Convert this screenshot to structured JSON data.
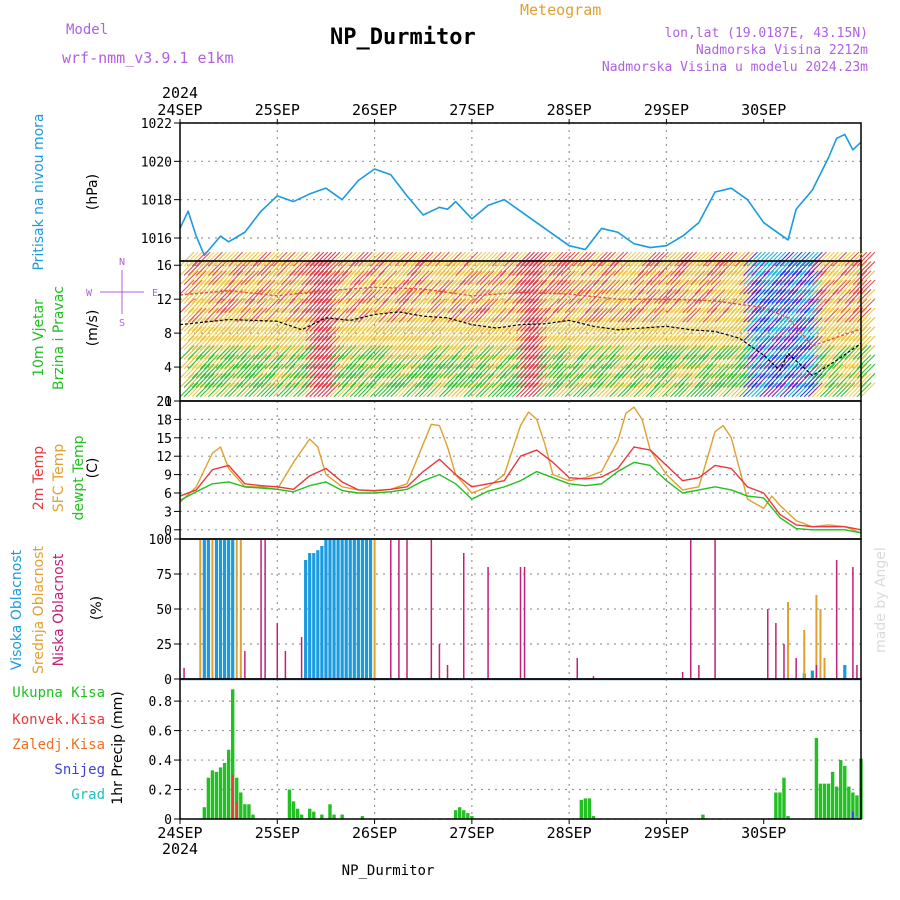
{
  "header": {
    "model_label": "Model",
    "model_name": "wrf-nmm_v3.9.1 e1km",
    "station": "NP_Durmitor",
    "product": "Meteogram",
    "lonlat": "lon,lat (19.0187E, 43.15N)",
    "elevation": "Nadmorska Visina 2212m",
    "model_elevation": "Nadmorska Visina u modelu 2024.23m",
    "year": "2024",
    "footer": "NP_Durmitor",
    "signature": "made by Angel"
  },
  "time_axis": {
    "labels": [
      "24SEP",
      "25SEP",
      "26SEP",
      "27SEP",
      "28SEP",
      "29SEP",
      "30SEP"
    ]
  },
  "colors": {
    "pressure": "#1a9be0",
    "t2m": "#e83a3a",
    "tsfc": "#e0a030",
    "dewpoint": "#22c022",
    "high_cloud": "#1a9be0",
    "mid_cloud": "#e0a030",
    "low_cloud": "#c0207a",
    "precip_total": "#22c022",
    "precip_conv": "#e83a3a",
    "precip_frz": "#f07020",
    "snow": "#4040e0",
    "hail": "#20c0c0",
    "wind_label": "#22c022",
    "wind_rose": "#b060e0",
    "header_purple": "#b060e0",
    "header_orange": "#e0a030"
  },
  "chart_data": [
    {
      "type": "line",
      "name": "pressure",
      "ylabel_colored": "Pritisak na nivou mora",
      "unit": "(hPa)",
      "ylim": [
        1014.8,
        1022
      ],
      "yticks": [
        1016,
        1018,
        1020,
        1022
      ],
      "grid": true,
      "x_hours": [
        0,
        2,
        4,
        6,
        8,
        10,
        12,
        16,
        20,
        24,
        28,
        32,
        36,
        40,
        44,
        48,
        52,
        56,
        60,
        64,
        66,
        68,
        72,
        76,
        80,
        84,
        88,
        92,
        96,
        100,
        104,
        108,
        112,
        116,
        120,
        124,
        128,
        132,
        136,
        140,
        144,
        146,
        148,
        150,
        152,
        156,
        160,
        162,
        164,
        166,
        168
      ],
      "values": [
        1016.5,
        1017.4,
        1016.1,
        1015.1,
        1015.6,
        1016.1,
        1015.8,
        1016.3,
        1017.4,
        1018.2,
        1017.9,
        1018.3,
        1018.6,
        1018.0,
        1019.0,
        1019.6,
        1019.3,
        1018.2,
        1017.2,
        1017.6,
        1017.5,
        1017.9,
        1017.0,
        1017.7,
        1018.0,
        1017.4,
        1016.8,
        1016.2,
        1015.6,
        1015.4,
        1016.5,
        1016.3,
        1015.7,
        1015.5,
        1015.6,
        1016.1,
        1016.8,
        1018.4,
        1018.6,
        1018.0,
        1016.8,
        1016.5,
        1016.2,
        1015.9,
        1017.5,
        1018.5,
        1020.2,
        1021.2,
        1021.4,
        1020.6,
        1021.0
      ]
    },
    {
      "type": "line",
      "name": "wind",
      "ylabel_colored": "10m Vjetar Brzina i Pravac",
      "unit": "(m/s)",
      "rose_labels": [
        "N",
        "W",
        "E",
        "S"
      ],
      "ylim": [
        0,
        16.5
      ],
      "yticks": [
        0,
        4,
        8,
        12,
        16
      ],
      "grid": true,
      "series": [
        {
          "name": "speed",
          "x_hours": [
            0,
            12,
            24,
            30,
            36,
            42,
            48,
            54,
            60,
            66,
            72,
            78,
            84,
            90,
            96,
            102,
            108,
            114,
            120,
            126,
            132,
            138,
            144,
            148,
            150,
            156,
            162,
            168
          ],
          "values": [
            9.0,
            9.6,
            9.4,
            8.4,
            9.8,
            9.5,
            10.2,
            10.5,
            10.0,
            9.8,
            9.0,
            8.6,
            9.0,
            9.1,
            9.5,
            8.8,
            8.4,
            8.6,
            8.8,
            8.4,
            8.2,
            7.4,
            5.4,
            3.6,
            5.6,
            3.0,
            4.8,
            6.8
          ]
        },
        {
          "name": "gust",
          "x_hours": [
            0,
            12,
            24,
            36,
            48,
            60,
            72,
            84,
            96,
            108,
            120,
            132,
            144,
            150,
            156,
            168
          ],
          "values": [
            12.5,
            13.0,
            12.4,
            13.0,
            13.4,
            13.2,
            12.4,
            12.8,
            12.6,
            12.0,
            12.0,
            11.8,
            11.0,
            9.8,
            6.5,
            8.5
          ]
        }
      ]
    },
    {
      "type": "line",
      "name": "temperature",
      "ylabel_colored": [
        "2m Temp",
        "SFC Temp",
        "dewpt Temp"
      ],
      "unit": "(C)",
      "ylim": [
        -1.5,
        21
      ],
      "yticks": [
        0,
        3,
        6,
        9,
        12,
        15,
        18,
        21
      ],
      "grid": true,
      "series": [
        {
          "name": "2m Temp",
          "x_hours": [
            0,
            4,
            8,
            12,
            16,
            20,
            24,
            28,
            32,
            36,
            40,
            44,
            48,
            52,
            56,
            60,
            64,
            68,
            72,
            76,
            80,
            84,
            88,
            92,
            96,
            100,
            104,
            108,
            112,
            116,
            120,
            124,
            128,
            132,
            136,
            140,
            144,
            148,
            152,
            156,
            160,
            164,
            168
          ],
          "values": [
            5.5,
            6.5,
            9.8,
            10.5,
            7.5,
            7.2,
            7.0,
            6.6,
            8.8,
            10.0,
            7.8,
            6.5,
            6.4,
            6.6,
            7.0,
            9.5,
            11.5,
            9.0,
            7.0,
            7.5,
            8.0,
            12.0,
            13.0,
            11.0,
            8.5,
            8.3,
            8.6,
            10.0,
            13.5,
            13.0,
            10.5,
            8.0,
            8.5,
            10.5,
            10.0,
            7.0,
            6.0,
            2.5,
            0.8,
            0.5,
            0.5,
            0.5,
            0.0
          ]
        },
        {
          "name": "SFC Temp",
          "x_hours": [
            0,
            4,
            8,
            10,
            12,
            16,
            20,
            24,
            28,
            32,
            34,
            36,
            40,
            44,
            48,
            52,
            56,
            60,
            62,
            64,
            66,
            68,
            72,
            76,
            80,
            84,
            86,
            88,
            90,
            92,
            96,
            100,
            104,
            108,
            110,
            112,
            114,
            116,
            120,
            124,
            128,
            132,
            134,
            136,
            140,
            144,
            146,
            148,
            152,
            156,
            160,
            164,
            168
          ],
          "values": [
            4.5,
            7.0,
            12.5,
            13.5,
            10.0,
            7.0,
            7.0,
            6.6,
            11.0,
            14.8,
            13.5,
            9.0,
            7.0,
            6.5,
            6.3,
            6.6,
            7.5,
            14.0,
            17.2,
            17.0,
            13.5,
            9.0,
            6.0,
            7.0,
            9.0,
            17.0,
            19.2,
            18.0,
            14.0,
            9.0,
            8.0,
            8.5,
            9.5,
            14.5,
            19.0,
            20.0,
            18.0,
            13.0,
            9.0,
            6.5,
            7.0,
            16.0,
            17.0,
            15.0,
            5.0,
            3.5,
            5.5,
            4.0,
            1.5,
            0.5,
            0.8,
            0.5,
            -0.5
          ]
        },
        {
          "name": "dewpt Temp",
          "x_hours": [
            0,
            4,
            8,
            12,
            16,
            20,
            24,
            28,
            32,
            36,
            40,
            44,
            48,
            52,
            56,
            60,
            64,
            68,
            72,
            76,
            80,
            84,
            88,
            92,
            96,
            100,
            104,
            108,
            112,
            116,
            120,
            124,
            128,
            132,
            136,
            140,
            144,
            148,
            152,
            156,
            160,
            164,
            168
          ],
          "values": [
            4.8,
            6.2,
            7.5,
            7.8,
            7.0,
            6.8,
            6.6,
            6.2,
            7.2,
            7.8,
            6.4,
            6.0,
            6.0,
            6.2,
            6.6,
            8.0,
            9.0,
            7.5,
            5.0,
            6.3,
            7.0,
            8.0,
            9.5,
            8.5,
            7.5,
            7.2,
            7.5,
            9.5,
            11.0,
            10.5,
            8.0,
            6.0,
            6.5,
            7.0,
            6.5,
            5.5,
            5.2,
            2.0,
            0.2,
            0.0,
            0.0,
            0.0,
            -0.5
          ]
        }
      ]
    },
    {
      "type": "bar",
      "name": "clouds",
      "ylabel_colored": [
        "Visoka Oblacnost",
        "Srednja Oblacnost",
        "Niska Oblacnost"
      ],
      "unit": "(%)",
      "ylim": [
        0,
        100
      ],
      "yticks": [
        0,
        25,
        50,
        75,
        100
      ],
      "grid": true,
      "series": [
        {
          "name": "Visoka Oblacnost",
          "bars": [
            [
              6,
              100
            ],
            [
              7,
              100
            ],
            [
              9,
              100
            ],
            [
              10,
              100
            ],
            [
              11,
              100
            ],
            [
              12,
              100
            ],
            [
              13,
              100
            ],
            [
              31,
              85
            ],
            [
              32,
              90
            ],
            [
              33,
              90
            ],
            [
              34,
              92
            ],
            [
              35,
              95
            ],
            [
              36,
              100
            ],
            [
              37,
              100
            ],
            [
              38,
              100
            ],
            [
              39,
              100
            ],
            [
              40,
              100
            ],
            [
              41,
              100
            ],
            [
              42,
              100
            ],
            [
              43,
              100
            ],
            [
              44,
              100
            ],
            [
              45,
              100
            ],
            [
              46,
              100
            ],
            [
              47,
              100
            ],
            [
              154,
              4
            ],
            [
              156,
              6
            ],
            [
              164,
              10
            ]
          ]
        },
        {
          "name": "Srednja Oblacnost",
          "bars": [
            [
              5,
              100
            ],
            [
              8,
              100
            ],
            [
              14,
              100
            ],
            [
              15,
              100
            ],
            [
              48,
              100
            ],
            [
              150,
              55
            ],
            [
              154,
              35
            ],
            [
              157,
              60
            ],
            [
              158,
              50
            ],
            [
              159,
              15
            ]
          ]
        },
        {
          "name": "Niska Oblacnost",
          "bars": [
            [
              1,
              8
            ],
            [
              16,
              20
            ],
            [
              20,
              100
            ],
            [
              21,
              100
            ],
            [
              24,
              40
            ],
            [
              26,
              20
            ],
            [
              30,
              30
            ],
            [
              52,
              100
            ],
            [
              54,
              100
            ],
            [
              56,
              100
            ],
            [
              62,
              100
            ],
            [
              64,
              25
            ],
            [
              66,
              10
            ],
            [
              70,
              90
            ],
            [
              76,
              80
            ],
            [
              84,
              80
            ],
            [
              85,
              80
            ],
            [
              98,
              15
            ],
            [
              102,
              2
            ],
            [
              124,
              5
            ],
            [
              126,
              100
            ],
            [
              128,
              10
            ],
            [
              132,
              100
            ],
            [
              145,
              50
            ],
            [
              147,
              40
            ],
            [
              149,
              25
            ],
            [
              152,
              15
            ],
            [
              157,
              10
            ],
            [
              162,
              85
            ],
            [
              166,
              80
            ],
            [
              167,
              10
            ]
          ]
        }
      ]
    },
    {
      "type": "bar",
      "name": "precipitation",
      "ylabel_colored": [
        "Ukupna Kisa",
        "Konvek.Kisa",
        "Zaledj.Kisa",
        "Snijeg",
        "Grad"
      ],
      "unit": "1hr Precip (mm)",
      "ylim": [
        0,
        0.95
      ],
      "yticks": [
        0,
        0.2,
        0.4,
        0.6,
        0.8
      ],
      "grid": true,
      "series": [
        {
          "name": "Ukupna Kisa",
          "bars": [
            [
              6,
              0.08
            ],
            [
              7,
              0.28
            ],
            [
              8,
              0.33
            ],
            [
              9,
              0.32
            ],
            [
              10,
              0.35
            ],
            [
              11,
              0.38
            ],
            [
              12,
              0.47
            ],
            [
              13,
              0.88
            ],
            [
              14,
              0.28
            ],
            [
              15,
              0.18
            ],
            [
              16,
              0.1
            ],
            [
              17,
              0.1
            ],
            [
              18,
              0.03
            ],
            [
              27,
              0.2
            ],
            [
              28,
              0.12
            ],
            [
              29,
              0.07
            ],
            [
              30,
              0.03
            ],
            [
              32,
              0.07
            ],
            [
              33,
              0.05
            ],
            [
              35,
              0.03
            ],
            [
              37,
              0.1
            ],
            [
              38,
              0.03
            ],
            [
              40,
              0.03
            ],
            [
              45,
              0.02
            ],
            [
              68,
              0.06
            ],
            [
              69,
              0.08
            ],
            [
              70,
              0.06
            ],
            [
              71,
              0.04
            ],
            [
              72,
              0.02
            ],
            [
              99,
              0.13
            ],
            [
              100,
              0.14
            ],
            [
              101,
              0.14
            ],
            [
              102,
              0.02
            ],
            [
              129,
              0.03
            ],
            [
              147,
              0.18
            ],
            [
              148,
              0.18
            ],
            [
              149,
              0.28
            ],
            [
              150,
              0.02
            ],
            [
              157,
              0.55
            ],
            [
              158,
              0.24
            ],
            [
              159,
              0.24
            ],
            [
              160,
              0.24
            ],
            [
              161,
              0.32
            ],
            [
              162,
              0.22
            ],
            [
              163,
              0.4
            ],
            [
              164,
              0.36
            ],
            [
              165,
              0.22
            ],
            [
              166,
              0.18
            ],
            [
              167,
              0.16
            ],
            [
              168,
              0.41
            ]
          ]
        },
        {
          "name": "Konvek.Kisa",
          "bars": [
            [
              13,
              0.3
            ],
            [
              14,
              0.12
            ]
          ]
        },
        {
          "name": "Zaledj.Kisa",
          "bars": []
        },
        {
          "name": "Snijeg",
          "bars": [
            [
              166,
              0.05
            ]
          ]
        },
        {
          "name": "Grad",
          "bars": [
            [
              167,
              0.02
            ]
          ]
        }
      ]
    }
  ]
}
